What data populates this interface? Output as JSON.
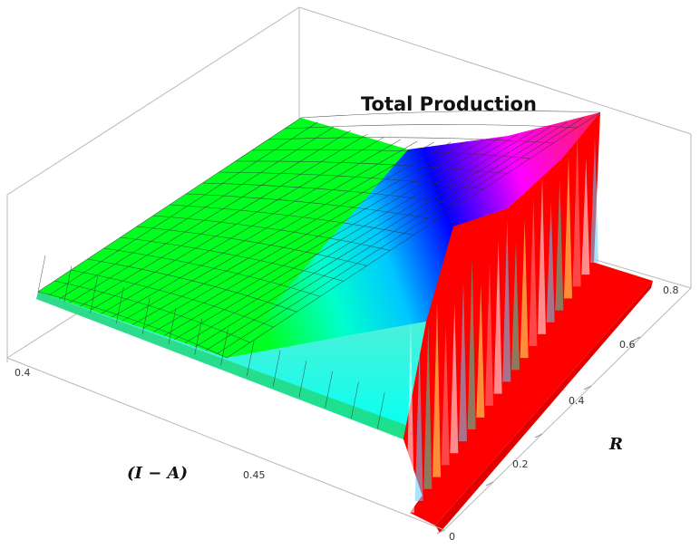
{
  "chart_data": {
    "type": "surface3d",
    "title": "Total Production",
    "x_axis": {
      "label": "(I − A)",
      "ticks": [
        "0.4",
        "0.45"
      ]
    },
    "y_axis": {
      "label": "R",
      "ticks": [
        "0",
        "0.2",
        "0.4",
        "0.6",
        "0.8"
      ]
    },
    "z_axis": {
      "label": "",
      "ticks": []
    },
    "colors": {
      "low": "#00ff22",
      "mid_low": "#00ffff",
      "mid": "#0000ff",
      "mid_high": "#ff00ff",
      "high": "#ff0000",
      "mesh": "#2a2a2a",
      "box": "#b0b0b0"
    },
    "surface_regions": [
      {
        "name": "plateau",
        "color": "green",
        "level": "low"
      },
      {
        "name": "ramp",
        "color": "cyan-blue-magenta",
        "level": "rising"
      },
      {
        "name": "cliff",
        "color": "red",
        "level": "zero"
      }
    ]
  }
}
